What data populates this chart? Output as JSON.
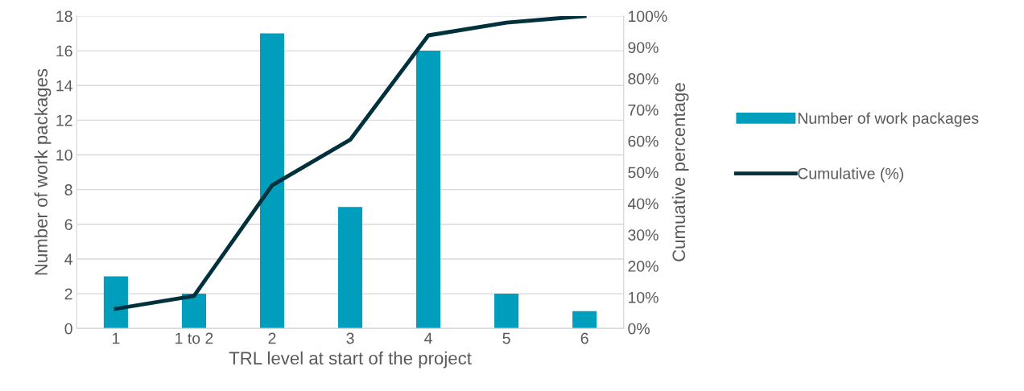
{
  "chart_data": {
    "type": "bar",
    "categories": [
      "1",
      "1 to 2",
      "2",
      "3",
      "4",
      "5",
      "6"
    ],
    "xlabel": "TRL level at start of the project",
    "ylabel": "Number of work packages",
    "y2label": "Cumuative percentage",
    "ylim": [
      0,
      18
    ],
    "yticks": [
      0,
      2,
      4,
      6,
      8,
      10,
      12,
      14,
      16,
      18
    ],
    "y2lim": [
      0,
      100
    ],
    "y2ticks": [
      {
        "value": 0,
        "label": "0%"
      },
      {
        "value": 10,
        "label": "10%"
      },
      {
        "value": 20,
        "label": "20%"
      },
      {
        "value": 30,
        "label": "30%"
      },
      {
        "value": 40,
        "label": "40%"
      },
      {
        "value": 50,
        "label": "50%"
      },
      {
        "value": 60,
        "label": "60%"
      },
      {
        "value": 70,
        "label": "70%"
      },
      {
        "value": 80,
        "label": "80%"
      },
      {
        "value": 90,
        "label": "90%"
      },
      {
        "value": 100,
        "label": "100%"
      }
    ],
    "grid": "y",
    "legend": "right",
    "series": [
      {
        "name": "Number of work packages",
        "color": "#009ebd",
        "values": [
          3,
          2,
          17,
          7,
          16,
          2,
          1
        ]
      },
      {
        "name": "Cumulative (%)",
        "type": "line",
        "axis": "y2",
        "color": "#00313c",
        "marker": "none",
        "line_style": "solid",
        "values": [
          6.3,
          10.4,
          45.8,
          60.4,
          93.8,
          97.9,
          100
        ]
      }
    ]
  }
}
